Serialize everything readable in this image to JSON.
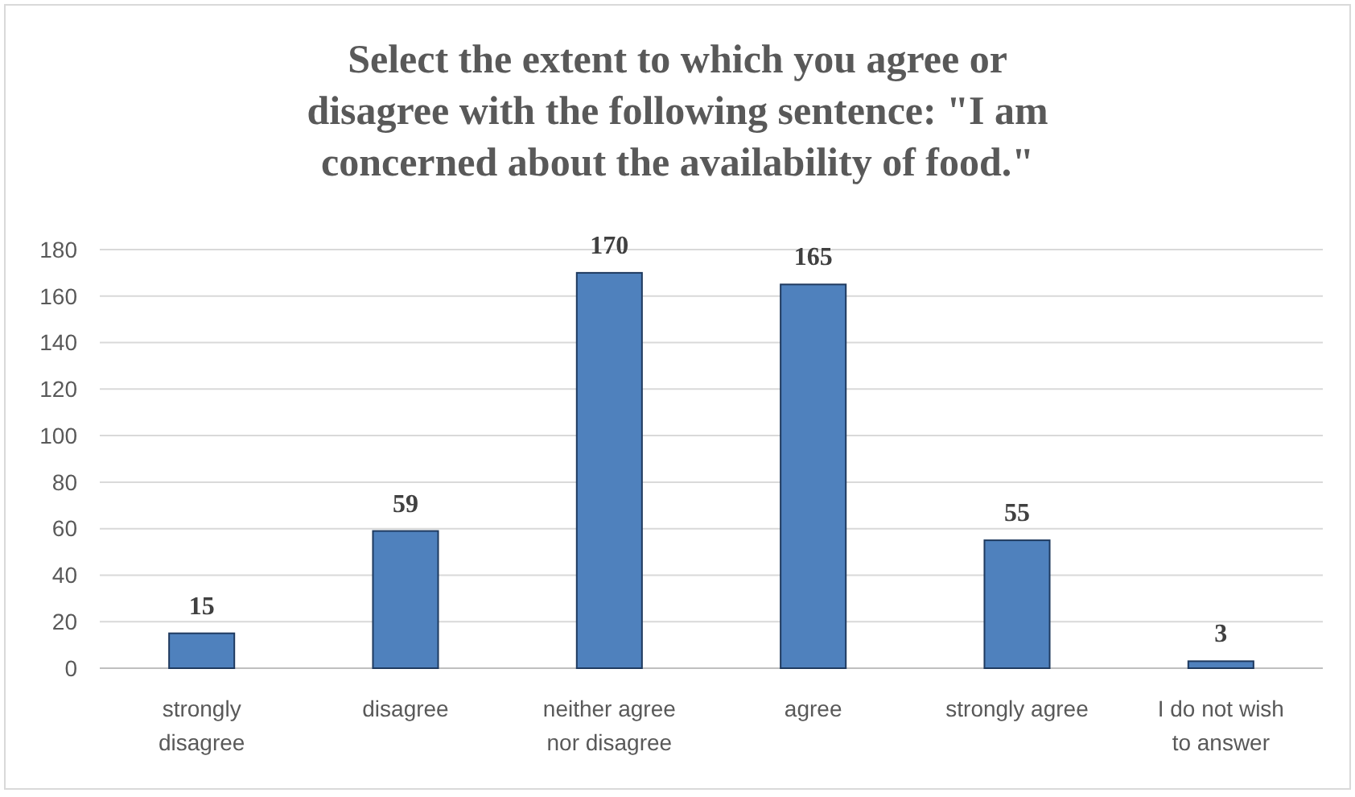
{
  "chart_data": {
    "type": "bar",
    "title": "Select the extent to which you agree or disagree with the following sentence: \"I am concerned about the availability of food.\"",
    "categories": [
      "strongly disagree",
      "disagree",
      "neither agree nor disagree",
      "agree",
      "strongly agree",
      "I do not wish to answer"
    ],
    "values": [
      15,
      59,
      170,
      165,
      55,
      3
    ],
    "color": "#4f81bd",
    "ylim": [
      0,
      180
    ],
    "yticks": [
      0,
      20,
      40,
      60,
      80,
      100,
      120,
      140,
      160,
      180
    ],
    "grid": "y",
    "data_labels": true
  }
}
